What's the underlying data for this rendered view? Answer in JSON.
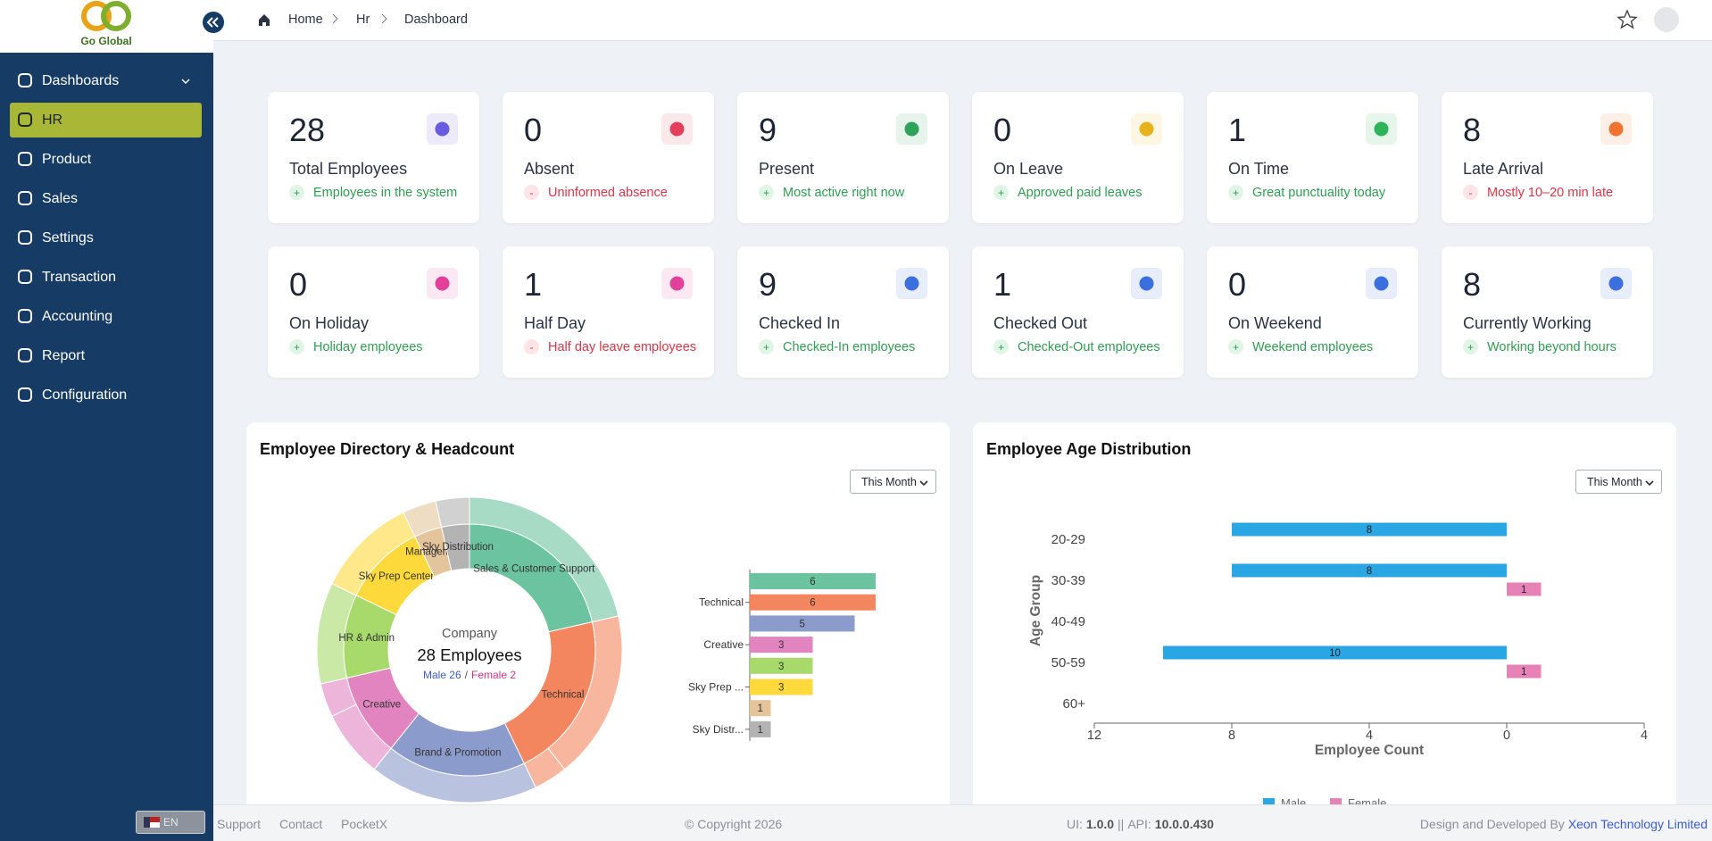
{
  "brand": "Go Global",
  "breadcrumb": [
    "Home",
    "Hr",
    "Dashboard"
  ],
  "menu": [
    {
      "label": "Dashboards"
    },
    {
      "label": "HR",
      "active": true
    },
    {
      "label": "Product"
    },
    {
      "label": "Sales"
    },
    {
      "label": "Settings"
    },
    {
      "label": "Transaction"
    },
    {
      "label": "Accounting"
    },
    {
      "label": "Report"
    },
    {
      "label": "Configuration"
    }
  ],
  "language": "EN",
  "cards": [
    {
      "value": 28,
      "title": "Total Employees",
      "sign": "+",
      "note": "Employees in the system"
    },
    {
      "value": 0,
      "title": "Absent",
      "sign": "-",
      "note": "Uninformed absence"
    },
    {
      "value": 9,
      "title": "Present",
      "sign": "+",
      "note": "Most active right now"
    },
    {
      "value": 0,
      "title": "On Leave",
      "sign": "+",
      "note": "Approved paid leaves"
    },
    {
      "value": 1,
      "title": "On Time",
      "sign": "+",
      "note": "Great punctuality today"
    },
    {
      "value": 8,
      "title": "Late Arrival",
      "sign": "-",
      "note": "Mostly 10–20 min late"
    },
    {
      "value": 0,
      "title": "On Holiday",
      "sign": "+",
      "note": "Holiday employees"
    },
    {
      "value": 1,
      "title": "Half Day",
      "sign": "-",
      "note": "Half day leave employees"
    },
    {
      "value": 9,
      "title": "Checked In",
      "sign": "+",
      "note": "Checked-In employees"
    },
    {
      "value": 1,
      "title": "Checked Out",
      "sign": "+",
      "note": "Checked-Out employees"
    },
    {
      "value": 0,
      "title": "On Weekend",
      "sign": "+",
      "note": "Weekend employees"
    },
    {
      "value": 8,
      "title": "Currently Working",
      "sign": "+",
      "note": "Working beyond hours"
    }
  ],
  "panels": [
    {
      "title": "Employee Directory & Headcount",
      "filter": "This Month"
    },
    {
      "title": "Employee Age Distribution",
      "filter": "This Month"
    }
  ],
  "chart_data": [
    {
      "type": "sunburst",
      "categories": [
        "Sales & Customer Support",
        "Technical",
        "Brand & Promotion",
        "Creative",
        "HR & Admin",
        "Sky Prep Center",
        "Management",
        "Sky Distribution"
      ],
      "values": [
        6,
        6,
        5,
        3,
        3,
        3,
        1,
        1
      ],
      "colors": [
        "#6cc3a0",
        "#f4865f",
        "#8b9bcb",
        "#e184c0",
        "#a7d96b",
        "#fed93c",
        "#e3c49b",
        "#b3b3b3"
      ],
      "outer": {
        "male": [
          6,
          5,
          5,
          2,
          3,
          3,
          1,
          1
        ],
        "female": [
          0,
          1,
          0,
          1,
          0,
          0,
          0,
          0
        ]
      },
      "center": {
        "title": "Company",
        "total": "28 Employees",
        "male": "Male 26",
        "separator": "/",
        "female": "Female 2"
      }
    },
    {
      "type": "bar",
      "orientation": "horizontal",
      "categories": [
        null,
        "Technical",
        null,
        "Creative",
        null,
        "Sky Prep ...",
        null,
        "Sky Distr..."
      ],
      "values": [
        6,
        6,
        5,
        3,
        3,
        3,
        1,
        1
      ],
      "colors": [
        "#6cc3a0",
        "#f4865f",
        "#8b9bcb",
        "#e184c0",
        "#a7d96b",
        "#fed93c",
        "#e3c49b",
        "#b3b3b3"
      ],
      "xlim": [
        0,
        6
      ]
    },
    {
      "type": "bar",
      "orientation": "horizontal",
      "categories": [
        "20-29",
        "30-39",
        "40-49",
        "50-59",
        "60+"
      ],
      "series": [
        {
          "name": "Male",
          "color": "#2aa6e4",
          "values": [
            -8,
            -8,
            0,
            -10,
            0
          ],
          "value_labels": [
            "8",
            "8",
            null,
            "10",
            null
          ]
        },
        {
          "name": "Female",
          "color": "#e682b6",
          "values": [
            0,
            1,
            0,
            1,
            0
          ]
        }
      ],
      "xlim": [
        -12,
        4
      ],
      "xticks": [
        {
          "value": -12,
          "label": "12"
        },
        {
          "value": -8,
          "label": "8"
        },
        {
          "value": -4,
          "label": "4"
        },
        0,
        4
      ],
      "xlabel": "Employee Count",
      "ylabel": "Age Group"
    }
  ],
  "footer": {
    "links": [
      "Support",
      "Contact",
      "PocketX"
    ],
    "copyright": "© Copyright 2026",
    "ui_label": "UI:",
    "ui_version": "1.0.0",
    "separator": "||",
    "api_label": "API:",
    "api_version": "10.0.0.430",
    "credit": "Design and Developed By",
    "company": "Xeon Technology Limited"
  }
}
